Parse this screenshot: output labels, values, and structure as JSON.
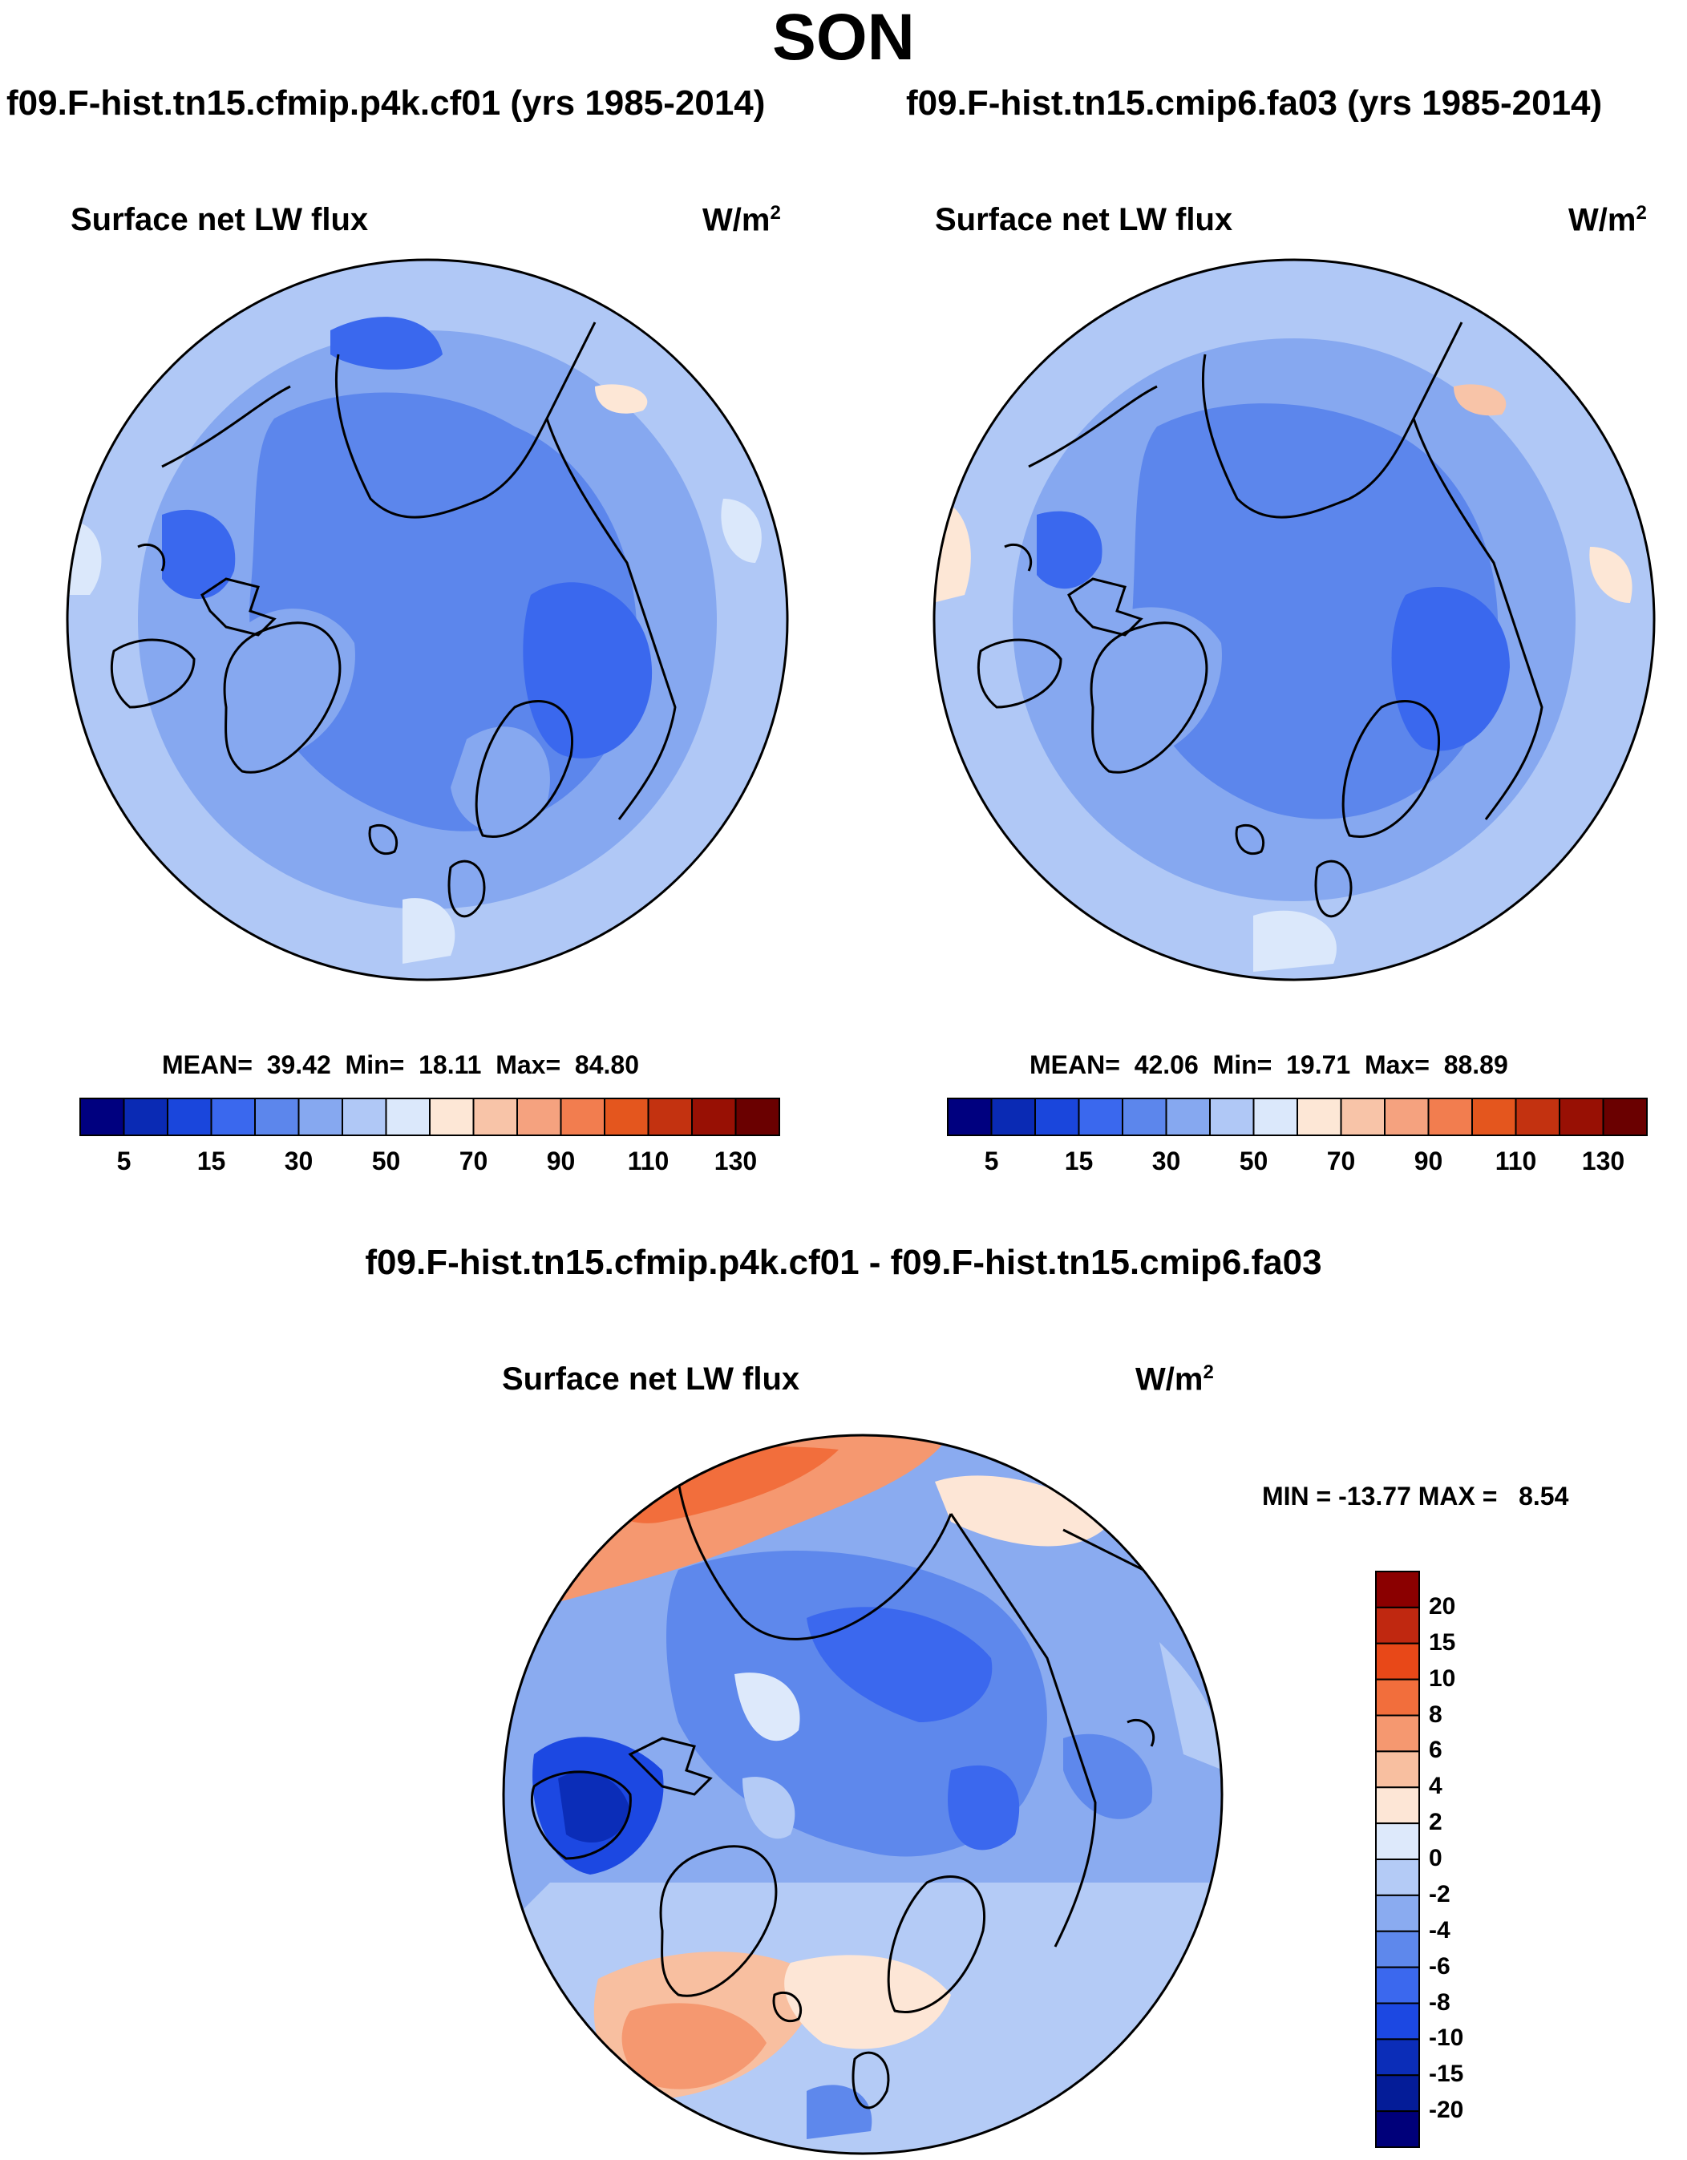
{
  "main_title": "SON",
  "panels": [
    {
      "case_title": "f09.F-hist.tn15.cfmip.p4k.cf01 (yrs 1985-2014)",
      "variable": "Surface net LW flux",
      "units_base": "W/m",
      "units_exp": "2",
      "stats": "MEAN=  39.42  Min=  18.11  Max=  84.80",
      "colorbar_ticks": [
        "5",
        "15",
        "30",
        "50",
        "70",
        "90",
        "110",
        "130"
      ]
    },
    {
      "case_title": "f09.F-hist.tn15.cmip6.fa03 (yrs 1985-2014)",
      "variable": "Surface net LW flux",
      "units_base": "W/m",
      "units_exp": "2",
      "stats": "MEAN=  42.06  Min=  19.71  Max=  88.89",
      "colorbar_ticks": [
        "5",
        "15",
        "30",
        "50",
        "70",
        "90",
        "110",
        "130"
      ]
    }
  ],
  "diff_panel": {
    "case_title": "f09.F-hist.tn15.cfmip.p4k.cf01 - f09.F-hist.tn15.cmip6.fa03",
    "variable": "Surface net LW flux",
    "units_base": "W/m",
    "units_exp": "2",
    "stats": "MIN = -13.77 MAX =   8.54",
    "colorbar_ticks": [
      "20",
      "15",
      "10",
      "8",
      "6",
      "4",
      "2",
      "0",
      "-2",
      "-4",
      "-6",
      "-8",
      "-10",
      "-15",
      "-20"
    ]
  },
  "colors": {
    "abs_palette": [
      "#00007f",
      "#0a2ab4",
      "#1a46dc",
      "#3a68ee",
      "#5c86ec",
      "#86a8f0",
      "#b0c8f6",
      "#dbe8fb",
      "#fde7d6",
      "#f8c4a8",
      "#f5a27f",
      "#f27d4f",
      "#e4561e",
      "#c33210",
      "#981004",
      "#6a0000"
    ],
    "diff_palette_top_to_bottom": [
      "#8b0000",
      "#c02810",
      "#e84818",
      "#f26e3c",
      "#f59870",
      "#f8bfa0",
      "#fde6d6",
      "#dde9fb",
      "#b4cbf6",
      "#8aabf0",
      "#5e88ec",
      "#3b68ee",
      "#1c48e2",
      "#0b2db8",
      "#041c98",
      "#00007a"
    ],
    "land_outline": "#000000"
  }
}
